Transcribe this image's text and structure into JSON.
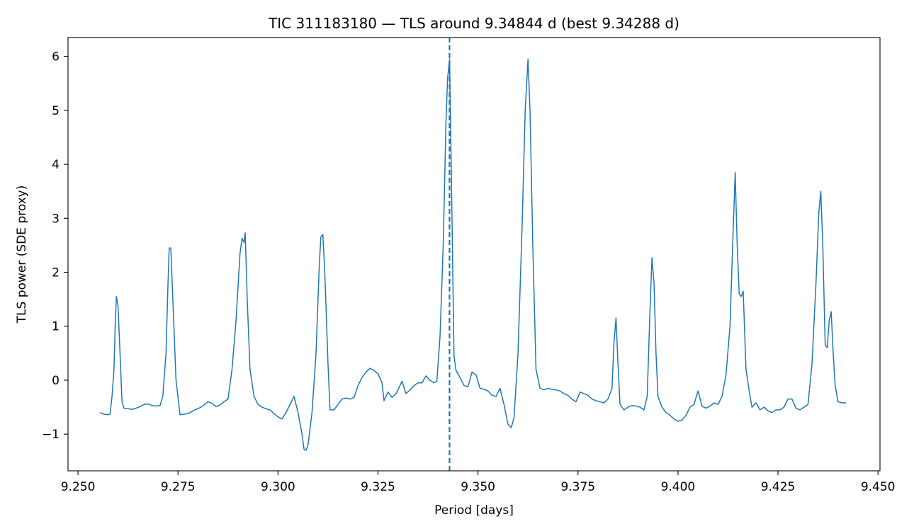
{
  "chart_data": {
    "type": "line",
    "title": "TIC 311183180 — TLS around 9.34844 d (best 9.34288 d)",
    "xlabel": "Period [days]",
    "ylabel": "TLS power (SDE proxy)",
    "xlim": [
      9.2475,
      9.4505
    ],
    "ylim": [
      -1.68,
      6.35
    ],
    "grid": false,
    "x_ticks": [
      9.25,
      9.275,
      9.3,
      9.325,
      9.35,
      9.375,
      9.4,
      9.425,
      9.45
    ],
    "x_tick_labels": [
      "9.250",
      "9.275",
      "9.300",
      "9.325",
      "9.350",
      "9.375",
      "9.400",
      "9.425",
      "9.450"
    ],
    "y_ticks": [
      -1,
      0,
      1,
      2,
      3,
      4,
      5,
      6
    ],
    "y_tick_labels": [
      "−1",
      "0",
      "1",
      "2",
      "3",
      "4",
      "5",
      "6"
    ],
    "vline": {
      "x": 9.34288,
      "style": "dashed",
      "color": "#1f77b4"
    },
    "series": [
      {
        "color": "#1f77b4",
        "points": [
          [
            9.2555,
            -0.6
          ],
          [
            9.2565,
            -0.63
          ],
          [
            9.2575,
            -0.64
          ],
          [
            9.258,
            -0.63
          ],
          [
            9.2585,
            -0.3
          ],
          [
            9.259,
            0.2
          ],
          [
            9.2593,
            1.05
          ],
          [
            9.2596,
            1.55
          ],
          [
            9.26,
            1.38
          ],
          [
            9.2605,
            0.5
          ],
          [
            9.261,
            -0.4
          ],
          [
            9.2615,
            -0.52
          ],
          [
            9.2625,
            -0.53
          ],
          [
            9.2635,
            -0.54
          ],
          [
            9.2645,
            -0.52
          ],
          [
            9.2655,
            -0.49
          ],
          [
            9.2665,
            -0.45
          ],
          [
            9.2675,
            -0.44
          ],
          [
            9.2685,
            -0.47
          ],
          [
            9.2695,
            -0.48
          ],
          [
            9.2705,
            -0.47
          ],
          [
            9.2712,
            -0.3
          ],
          [
            9.272,
            0.5
          ],
          [
            9.2725,
            1.8
          ],
          [
            9.2728,
            2.45
          ],
          [
            9.2732,
            2.45
          ],
          [
            9.2737,
            1.5
          ],
          [
            9.2745,
            0.0
          ],
          [
            9.2755,
            -0.64
          ],
          [
            9.2765,
            -0.63
          ],
          [
            9.2775,
            -0.62
          ],
          [
            9.2785,
            -0.58
          ],
          [
            9.2795,
            -0.54
          ],
          [
            9.2805,
            -0.51
          ],
          [
            9.2815,
            -0.46
          ],
          [
            9.2825,
            -0.4
          ],
          [
            9.2835,
            -0.43
          ],
          [
            9.2845,
            -0.49
          ],
          [
            9.2855,
            -0.46
          ],
          [
            9.2865,
            -0.4
          ],
          [
            9.2875,
            -0.35
          ],
          [
            9.2885,
            0.2
          ],
          [
            9.2895,
            1.1
          ],
          [
            9.2905,
            2.35
          ],
          [
            9.291,
            2.63
          ],
          [
            9.2915,
            2.55
          ],
          [
            9.2918,
            2.73
          ],
          [
            9.2923,
            1.5
          ],
          [
            9.293,
            0.2
          ],
          [
            9.294,
            -0.3
          ],
          [
            9.295,
            -0.45
          ],
          [
            9.296,
            -0.5
          ],
          [
            9.297,
            -0.53
          ],
          [
            9.298,
            -0.55
          ],
          [
            9.299,
            -0.62
          ],
          [
            9.3,
            -0.68
          ],
          [
            9.301,
            -0.72
          ],
          [
            9.302,
            -0.6
          ],
          [
            9.303,
            -0.45
          ],
          [
            9.304,
            -0.3
          ],
          [
            9.305,
            -0.6
          ],
          [
            9.306,
            -1.0
          ],
          [
            9.3065,
            -1.28
          ],
          [
            9.307,
            -1.3
          ],
          [
            9.3075,
            -1.2
          ],
          [
            9.3085,
            -0.6
          ],
          [
            9.3095,
            0.5
          ],
          [
            9.3103,
            2.1
          ],
          [
            9.3107,
            2.65
          ],
          [
            9.3112,
            2.7
          ],
          [
            9.3117,
            2.0
          ],
          [
            9.3125,
            0.3
          ],
          [
            9.313,
            -0.55
          ],
          [
            9.314,
            -0.55
          ],
          [
            9.315,
            -0.45
          ],
          [
            9.316,
            -0.35
          ],
          [
            9.317,
            -0.33
          ],
          [
            9.318,
            -0.35
          ],
          [
            9.319,
            -0.32
          ],
          [
            9.32,
            -0.1
          ],
          [
            9.321,
            0.05
          ],
          [
            9.322,
            0.15
          ],
          [
            9.323,
            0.22
          ],
          [
            9.324,
            0.18
          ],
          [
            9.325,
            0.12
          ],
          [
            9.326,
            -0.05
          ],
          [
            9.3265,
            -0.38
          ],
          [
            9.3275,
            -0.22
          ],
          [
            9.3285,
            -0.32
          ],
          [
            9.3295,
            -0.25
          ],
          [
            9.3305,
            -0.1
          ],
          [
            9.331,
            -0.02
          ],
          [
            9.332,
            -0.25
          ],
          [
            9.333,
            -0.18
          ],
          [
            9.334,
            -0.1
          ],
          [
            9.335,
            -0.05
          ],
          [
            9.336,
            -0.05
          ],
          [
            9.337,
            0.08
          ],
          [
            9.338,
            0.0
          ],
          [
            9.339,
            -0.05
          ],
          [
            9.3397,
            -0.02
          ],
          [
            9.3405,
            0.8
          ],
          [
            9.3413,
            2.5
          ],
          [
            9.342,
            4.8
          ],
          [
            9.3424,
            5.6
          ],
          [
            9.3429,
            5.95
          ],
          [
            9.3433,
            4.0
          ],
          [
            9.344,
            0.45
          ],
          [
            9.3445,
            0.18
          ],
          [
            9.3455,
            0.05
          ],
          [
            9.3465,
            -0.1
          ],
          [
            9.3475,
            -0.12
          ],
          [
            9.3485,
            0.15
          ],
          [
            9.3495,
            0.1
          ],
          [
            9.3505,
            -0.15
          ],
          [
            9.3515,
            -0.17
          ],
          [
            9.3525,
            -0.2
          ],
          [
            9.3535,
            -0.28
          ],
          [
            9.3545,
            -0.3
          ],
          [
            9.3555,
            -0.15
          ],
          [
            9.3565,
            -0.45
          ],
          [
            9.3575,
            -0.82
          ],
          [
            9.3583,
            -0.88
          ],
          [
            9.359,
            -0.7
          ],
          [
            9.36,
            0.5
          ],
          [
            9.361,
            2.8
          ],
          [
            9.3618,
            5.0
          ],
          [
            9.3625,
            5.95
          ],
          [
            9.363,
            5.0
          ],
          [
            9.3637,
            2.5
          ],
          [
            9.3645,
            0.2
          ],
          [
            9.3655,
            -0.15
          ],
          [
            9.3665,
            -0.18
          ],
          [
            9.3675,
            -0.15
          ],
          [
            9.3685,
            -0.17
          ],
          [
            9.3695,
            -0.18
          ],
          [
            9.3705,
            -0.2
          ],
          [
            9.3715,
            -0.25
          ],
          [
            9.3725,
            -0.28
          ],
          [
            9.3735,
            -0.35
          ],
          [
            9.3745,
            -0.4
          ],
          [
            9.3755,
            -0.22
          ],
          [
            9.3765,
            -0.25
          ],
          [
            9.3775,
            -0.28
          ],
          [
            9.3785,
            -0.35
          ],
          [
            9.3795,
            -0.38
          ],
          [
            9.3805,
            -0.4
          ],
          [
            9.3815,
            -0.42
          ],
          [
            9.3825,
            -0.35
          ],
          [
            9.3835,
            -0.15
          ],
          [
            9.384,
            0.7
          ],
          [
            9.3845,
            1.15
          ],
          [
            9.385,
            0.3
          ],
          [
            9.3855,
            -0.45
          ],
          [
            9.3865,
            -0.55
          ],
          [
            9.3875,
            -0.5
          ],
          [
            9.3885,
            -0.47
          ],
          [
            9.3895,
            -0.48
          ],
          [
            9.3905,
            -0.5
          ],
          [
            9.3915,
            -0.55
          ],
          [
            9.3923,
            -0.3
          ],
          [
            9.393,
            1.3
          ],
          [
            9.3935,
            2.27
          ],
          [
            9.394,
            1.8
          ],
          [
            9.3945,
            0.5
          ],
          [
            9.395,
            -0.3
          ],
          [
            9.396,
            -0.5
          ],
          [
            9.397,
            -0.6
          ],
          [
            9.398,
            -0.65
          ],
          [
            9.399,
            -0.72
          ],
          [
            9.4,
            -0.76
          ],
          [
            9.401,
            -0.74
          ],
          [
            9.402,
            -0.65
          ],
          [
            9.403,
            -0.5
          ],
          [
            9.404,
            -0.45
          ],
          [
            9.405,
            -0.2
          ],
          [
            9.406,
            -0.48
          ],
          [
            9.407,
            -0.52
          ],
          [
            9.408,
            -0.48
          ],
          [
            9.409,
            -0.42
          ],
          [
            9.41,
            -0.45
          ],
          [
            9.411,
            -0.3
          ],
          [
            9.412,
            0.1
          ],
          [
            9.413,
            1.0
          ],
          [
            9.4138,
            2.8
          ],
          [
            9.4143,
            3.85
          ],
          [
            9.4148,
            2.5
          ],
          [
            9.4153,
            1.6
          ],
          [
            9.4158,
            1.55
          ],
          [
            9.4163,
            1.65
          ],
          [
            9.417,
            0.2
          ],
          [
            9.418,
            -0.3
          ],
          [
            9.4185,
            -0.5
          ],
          [
            9.4195,
            -0.42
          ],
          [
            9.4205,
            -0.55
          ],
          [
            9.4215,
            -0.5
          ],
          [
            9.4225,
            -0.57
          ],
          [
            9.4235,
            -0.6
          ],
          [
            9.4245,
            -0.55
          ],
          [
            9.4255,
            -0.55
          ],
          [
            9.4265,
            -0.5
          ],
          [
            9.4275,
            -0.35
          ],
          [
            9.4285,
            -0.35
          ],
          [
            9.4295,
            -0.52
          ],
          [
            9.4305,
            -0.55
          ],
          [
            9.4315,
            -0.5
          ],
          [
            9.4325,
            -0.45
          ],
          [
            9.4335,
            0.3
          ],
          [
            9.4345,
            1.8
          ],
          [
            9.4352,
            3.1
          ],
          [
            9.4357,
            3.5
          ],
          [
            9.4362,
            2.5
          ],
          [
            9.4368,
            0.65
          ],
          [
            9.4373,
            0.6
          ],
          [
            9.4378,
            1.1
          ],
          [
            9.4383,
            1.27
          ],
          [
            9.4388,
            0.5
          ],
          [
            9.4393,
            -0.1
          ],
          [
            9.44,
            -0.4
          ],
          [
            9.441,
            -0.42
          ],
          [
            9.442,
            -0.42
          ]
        ]
      }
    ]
  }
}
